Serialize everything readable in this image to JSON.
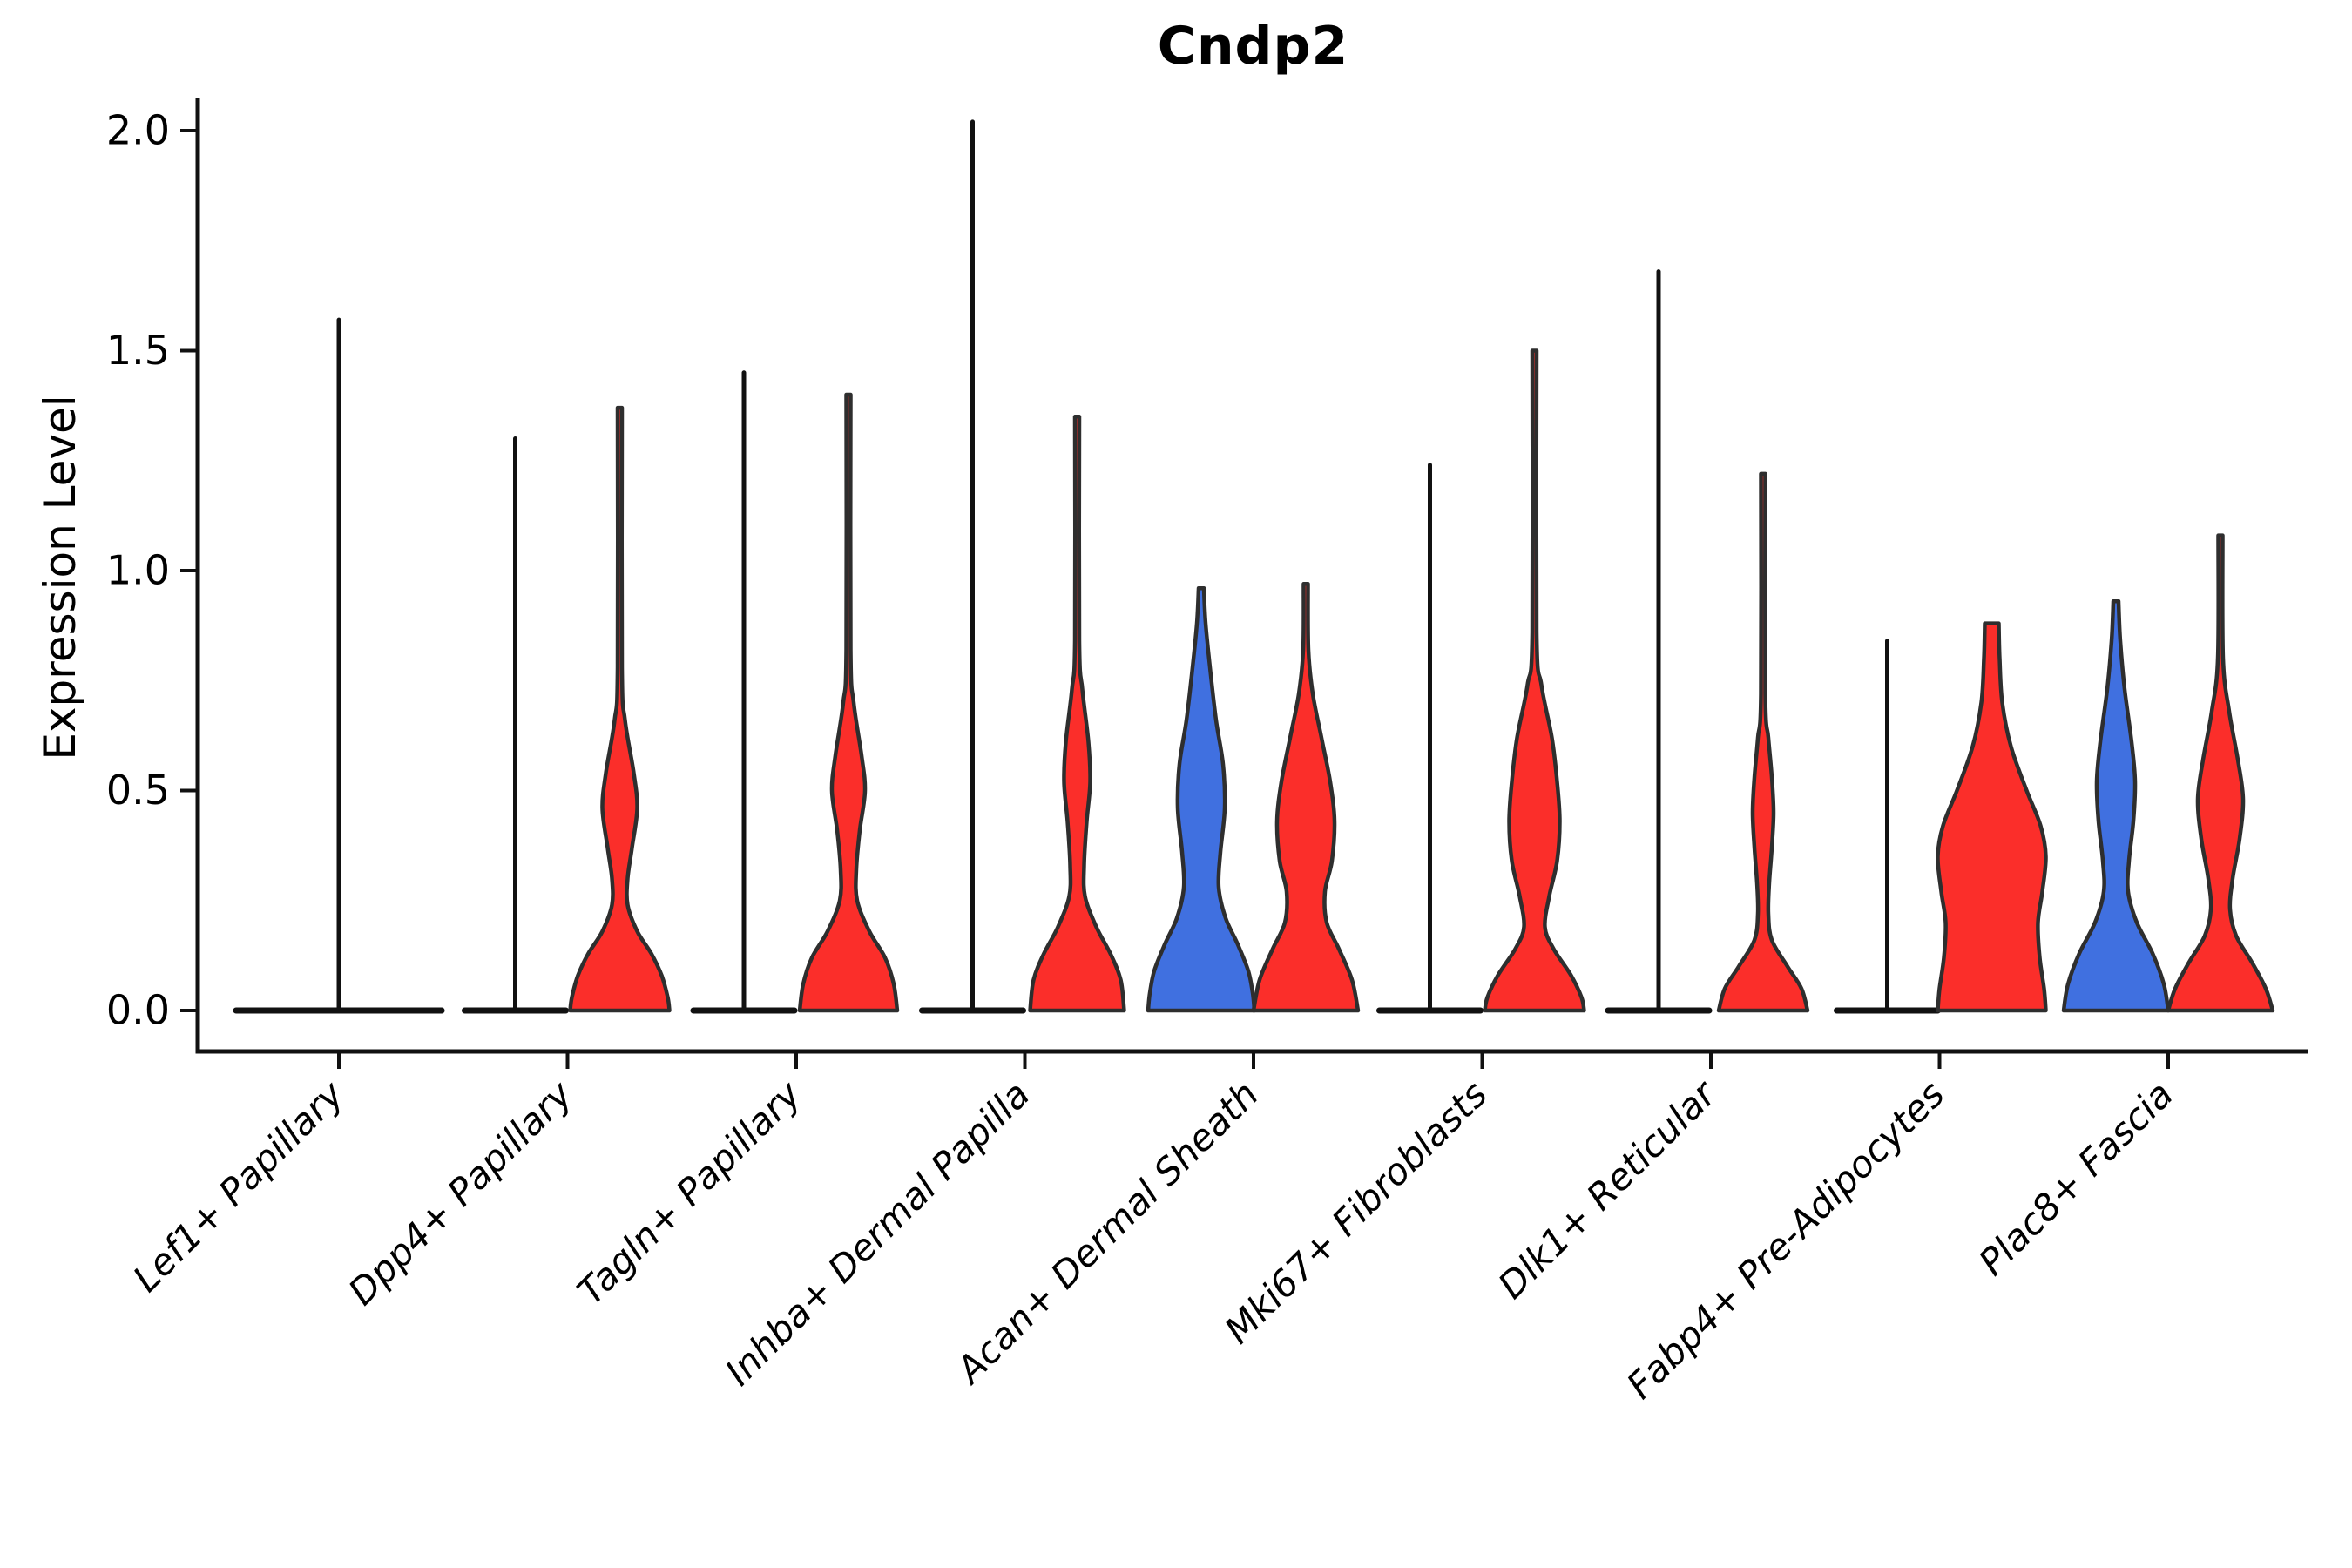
{
  "title": "Cndp2",
  "axes": {
    "ylabel": "Expression Level",
    "ytick_labels": [
      "0.0",
      "0.5",
      "1.0",
      "1.5",
      "2.0"
    ]
  },
  "colors": {
    "red": "#fb2e2a",
    "blue": "#4070e0",
    "edge": "#2e2e2e",
    "axis": "#111111"
  },
  "chart_data": {
    "type": "violin",
    "title": "Cndp2",
    "ylabel": "Expression Level",
    "ylim": [
      -0.09,
      2.08
    ],
    "yticks": [
      0,
      0.5,
      1.0,
      1.5,
      2.0
    ],
    "grid": false,
    "legend": "none",
    "categories": [
      "Lef1+ Papillary",
      "Dpp4+ Papillary",
      "Tagln+ Papillary",
      "Inhba+ Dermal Papilla",
      "Acan+ Dermal Sheath",
      "Mki67+ Fibroblasts",
      "Dlk1+ Reticular",
      "Fabp4+ Pre-Adipocytes",
      "Plac8+ Fascia"
    ],
    "note": "Split violin plot; most cells have expression 0 (flat violins). max = top of whisker/density in expression units; profile = [expression value, half-width px] pairs from top to bottom.",
    "groups": [
      {
        "category": "Lef1+ Papillary",
        "violins": [
          {
            "side": "center",
            "color": "red",
            "shape": "flat",
            "max": 1.57,
            "half_span": 118
          }
        ]
      },
      {
        "category": "Dpp4+ Papillary",
        "violins": [
          {
            "side": "left",
            "color": "blue",
            "shape": "flat",
            "max": 1.3,
            "half_span": 58
          },
          {
            "side": "right",
            "color": "red",
            "shape": "curve",
            "max": 1.37,
            "profile": [
              [
                1.37,
                2.5
              ],
              [
                0.78,
                2.5
              ],
              [
                0.66,
                6
              ],
              [
                0.54,
                16
              ],
              [
                0.46,
                20
              ],
              [
                0.37,
                14
              ],
              [
                0.3,
                9
              ],
              [
                0.24,
                9
              ],
              [
                0.18,
                20
              ],
              [
                0.13,
                36
              ],
              [
                0.08,
                48
              ],
              [
                0.03,
                55
              ],
              [
                0,
                57
              ]
            ]
          }
        ]
      },
      {
        "category": "Tagln+ Papillary",
        "violins": [
          {
            "side": "left",
            "color": "blue",
            "shape": "flat",
            "max": 1.45,
            "half_span": 58
          },
          {
            "side": "right",
            "color": "red",
            "shape": "curve",
            "max": 1.4,
            "profile": [
              [
                1.4,
                2.5
              ],
              [
                0.82,
                2.5
              ],
              [
                0.7,
                6
              ],
              [
                0.58,
                15
              ],
              [
                0.5,
                19
              ],
              [
                0.41,
                13
              ],
              [
                0.32,
                9
              ],
              [
                0.25,
                10
              ],
              [
                0.18,
                24
              ],
              [
                0.12,
                42
              ],
              [
                0.06,
                52
              ],
              [
                0,
                56
              ]
            ]
          }
        ]
      },
      {
        "category": "Inhba+ Dermal Papilla",
        "violins": [
          {
            "side": "left",
            "color": "blue",
            "shape": "flat",
            "max": 2.02,
            "half_span": 58
          },
          {
            "side": "right",
            "color": "red",
            "shape": "curve",
            "max": 1.35,
            "profile": [
              [
                1.35,
                2.5
              ],
              [
                0.84,
                2.5
              ],
              [
                0.73,
                6
              ],
              [
                0.61,
                13
              ],
              [
                0.52,
                15
              ],
              [
                0.43,
                11
              ],
              [
                0.33,
                8
              ],
              [
                0.26,
                9
              ],
              [
                0.19,
                22
              ],
              [
                0.13,
                38
              ],
              [
                0.07,
                50
              ],
              [
                0,
                54
              ]
            ]
          }
        ]
      },
      {
        "category": "Acan+ Dermal Sheath",
        "violins": [
          {
            "side": "left",
            "color": "blue",
            "shape": "curve",
            "max": 0.96,
            "profile": [
              [
                0.96,
                3
              ],
              [
                0.88,
                5
              ],
              [
                0.78,
                10
              ],
              [
                0.66,
                17
              ],
              [
                0.56,
                25
              ],
              [
                0.46,
                27
              ],
              [
                0.36,
                22
              ],
              [
                0.28,
                20
              ],
              [
                0.21,
                28
              ],
              [
                0.15,
                42
              ],
              [
                0.09,
                54
              ],
              [
                0.04,
                59
              ],
              [
                0,
                61
              ]
            ]
          },
          {
            "side": "right",
            "color": "red",
            "shape": "curve",
            "max": 0.97,
            "profile": [
              [
                0.97,
                2.5
              ],
              [
                0.82,
                3
              ],
              [
                0.72,
                8
              ],
              [
                0.62,
                18
              ],
              [
                0.52,
                28
              ],
              [
                0.43,
                33
              ],
              [
                0.34,
                30
              ],
              [
                0.27,
                22
              ],
              [
                0.2,
                24
              ],
              [
                0.14,
                38
              ],
              [
                0.07,
                53
              ],
              [
                0,
                60
              ]
            ]
          }
        ]
      },
      {
        "category": "Mki67+ Fibroblasts",
        "violins": [
          {
            "side": "left",
            "color": "blue",
            "shape": "flat",
            "max": 1.24,
            "half_span": 58
          },
          {
            "side": "right",
            "color": "red",
            "shape": "curve",
            "max": 1.5,
            "profile": [
              [
                1.5,
                2.5
              ],
              [
                0.86,
                2.5
              ],
              [
                0.74,
                8
              ],
              [
                0.62,
                20
              ],
              [
                0.52,
                26
              ],
              [
                0.43,
                29
              ],
              [
                0.34,
                26
              ],
              [
                0.26,
                17
              ],
              [
                0.19,
                12
              ],
              [
                0.14,
                22
              ],
              [
                0.08,
                42
              ],
              [
                0.03,
                54
              ],
              [
                0,
                57
              ]
            ]
          }
        ]
      },
      {
        "category": "Dlk1+ Reticular",
        "violins": [
          {
            "side": "left",
            "color": "blue",
            "shape": "flat",
            "max": 1.68,
            "half_span": 58
          },
          {
            "side": "right",
            "color": "red",
            "shape": "curve",
            "max": 1.22,
            "profile": [
              [
                1.22,
                2.5
              ],
              [
                0.72,
                2.5
              ],
              [
                0.62,
                6
              ],
              [
                0.53,
                10
              ],
              [
                0.45,
                12
              ],
              [
                0.37,
                10
              ],
              [
                0.29,
                7
              ],
              [
                0.22,
                6
              ],
              [
                0.16,
                10
              ],
              [
                0.1,
                28
              ],
              [
                0.05,
                44
              ],
              [
                0,
                51
              ]
            ]
          }
        ]
      },
      {
        "category": "Fabp4+ Pre-Adipocytes",
        "violins": [
          {
            "side": "left",
            "color": "blue",
            "shape": "flat",
            "max": 0.84,
            "half_span": 58
          },
          {
            "side": "right",
            "color": "red",
            "shape": "curve",
            "max": 0.88,
            "profile": [
              [
                0.88,
                8
              ],
              [
                0.8,
                9
              ],
              [
                0.7,
                12
              ],
              [
                0.6,
                22
              ],
              [
                0.5,
                40
              ],
              [
                0.42,
                56
              ],
              [
                0.35,
                62
              ],
              [
                0.27,
                58
              ],
              [
                0.2,
                53
              ],
              [
                0.12,
                55
              ],
              [
                0.05,
                60
              ],
              [
                0,
                62
              ]
            ]
          }
        ]
      },
      {
        "category": "Plac8+ Fascia",
        "violins": [
          {
            "side": "left",
            "color": "blue",
            "shape": "curve",
            "max": 0.93,
            "profile": [
              [
                0.93,
                3
              ],
              [
                0.84,
                5
              ],
              [
                0.73,
                10
              ],
              [
                0.61,
                18
              ],
              [
                0.52,
                22
              ],
              [
                0.43,
                20
              ],
              [
                0.34,
                15
              ],
              [
                0.27,
                14
              ],
              [
                0.2,
                24
              ],
              [
                0.13,
                42
              ],
              [
                0.06,
                55
              ],
              [
                0,
                60
              ]
            ]
          },
          {
            "side": "right",
            "color": "red",
            "shape": "curve",
            "max": 1.08,
            "profile": [
              [
                1.08,
                2.5
              ],
              [
                0.8,
                3
              ],
              [
                0.68,
                10
              ],
              [
                0.57,
                20
              ],
              [
                0.48,
                26
              ],
              [
                0.39,
                22
              ],
              [
                0.3,
                14
              ],
              [
                0.23,
                11
              ],
              [
                0.17,
                18
              ],
              [
                0.11,
                36
              ],
              [
                0.05,
                52
              ],
              [
                0,
                60
              ]
            ]
          }
        ]
      }
    ]
  }
}
